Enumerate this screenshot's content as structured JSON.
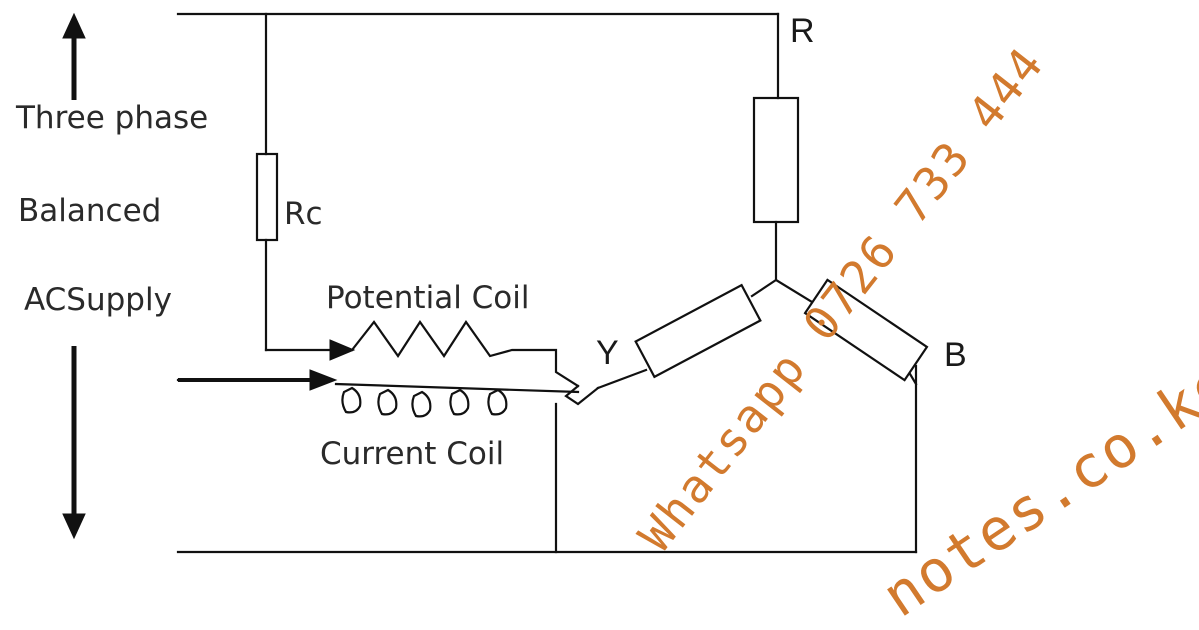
{
  "supply_labels": {
    "line1": "Three phase",
    "line2": "Balanced",
    "line3": "ACSupply"
  },
  "components": {
    "rc": "Rc",
    "potential_coil": "Potential Coil",
    "current_coil": "Current Coil"
  },
  "nodes": {
    "r": "R",
    "y": "Y",
    "b": "B"
  },
  "watermark": {
    "line1": "Whatsapp 0726 733 444",
    "line2": "notes.co.ke"
  },
  "colors": {
    "wire": "#111111",
    "watermark": "#d27a2e"
  }
}
